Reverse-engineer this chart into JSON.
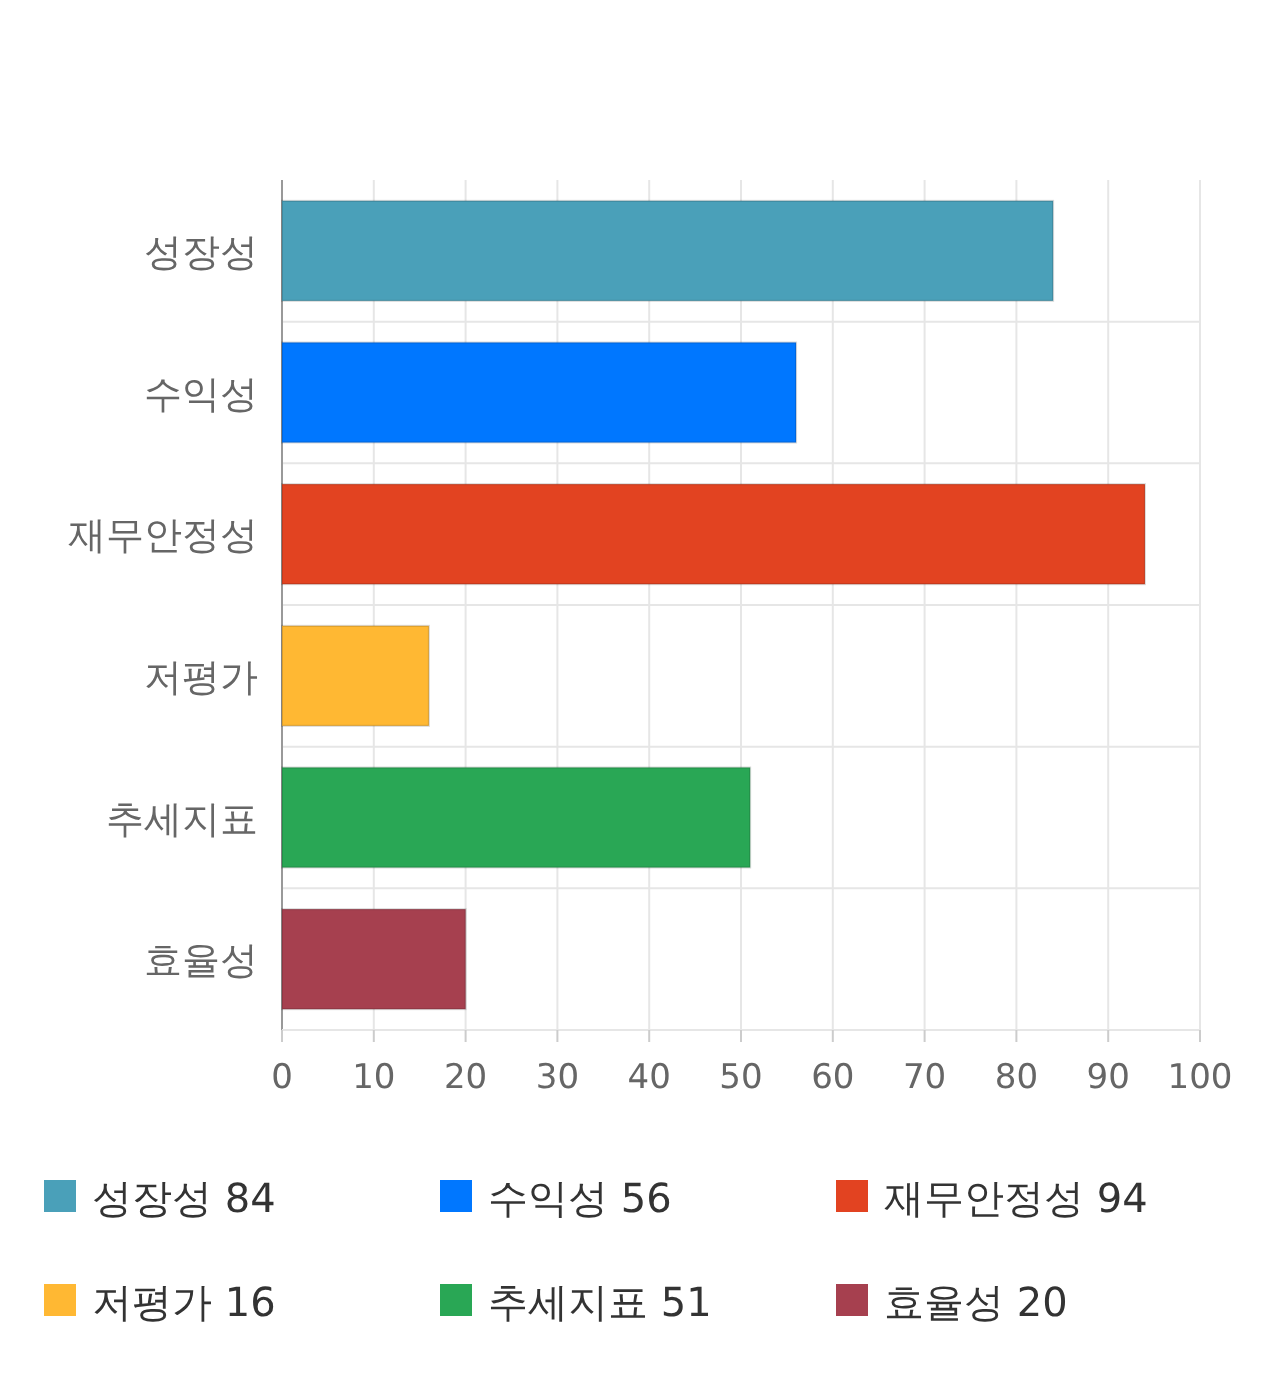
{
  "chart_data": {
    "type": "bar",
    "orientation": "horizontal",
    "categories": [
      "성장성",
      "수익성",
      "재무안정성",
      "저평가",
      "추세지표",
      "효율성"
    ],
    "series": [
      {
        "name": "성장성 84",
        "color": "#4aa0b9",
        "values": [
          84,
          null,
          null,
          null,
          null,
          null
        ]
      },
      {
        "name": "수익성 56",
        "color": "#0077ff",
        "values": [
          null,
          56,
          null,
          null,
          null,
          null
        ]
      },
      {
        "name": "재무안정성 94",
        "color": "#e24321",
        "values": [
          null,
          null,
          94,
          null,
          null,
          null
        ]
      },
      {
        "name": "저평가 16",
        "color": "#ffb833",
        "values": [
          null,
          null,
          null,
          16,
          null,
          null
        ]
      },
      {
        "name": "추세지표 51",
        "color": "#29a755",
        "values": [
          null,
          null,
          null,
          null,
          51,
          null
        ]
      },
      {
        "name": "효율성 20",
        "color": "#a6404f",
        "values": [
          null,
          null,
          null,
          null,
          null,
          20
        ]
      }
    ],
    "xlim": [
      0,
      100
    ],
    "xticks": [
      0,
      10,
      20,
      30,
      40,
      50,
      60,
      70,
      80,
      90,
      100
    ],
    "grid": true,
    "legend": "bottom"
  }
}
